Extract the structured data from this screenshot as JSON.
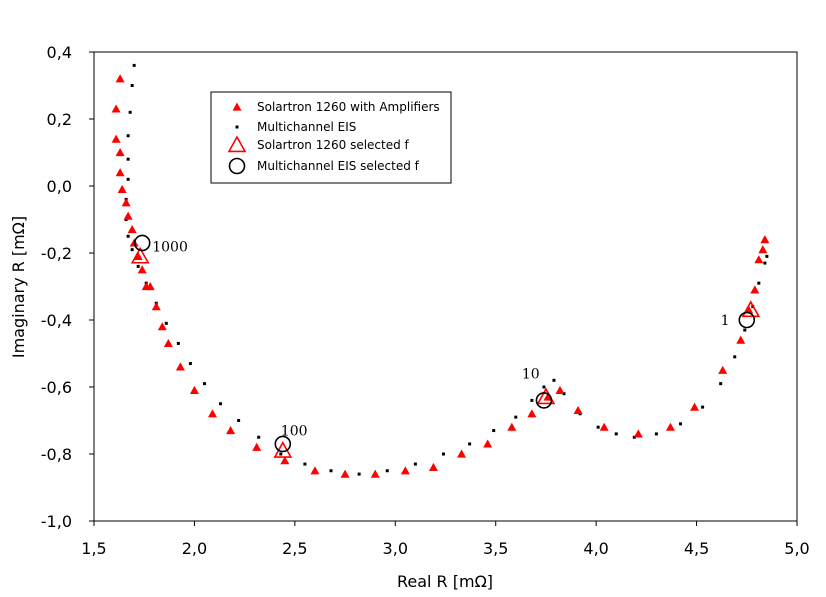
{
  "chart_data": {
    "type": "scatter",
    "title": "",
    "xlabel": "Real R [mΩ]",
    "ylabel": "Imaginary R [mΩ]",
    "xlim": [
      1.5,
      5.0
    ],
    "ylim": [
      -1.0,
      0.4
    ],
    "x_ticks": [
      "1,5",
      "2,0",
      "2,5",
      "3,0",
      "3,5",
      "4,0",
      "4,5",
      "5,0"
    ],
    "y_ticks": [
      "0,4",
      "0,2",
      "0,0",
      "-0,2",
      "-0,4",
      "-0,6",
      "-0,8",
      "-1,0"
    ],
    "grid": false,
    "legend_position": "upper-left inside plot",
    "colors": {
      "solartron": "#ff0000",
      "multichannel": "#000000"
    },
    "series": [
      {
        "name": "Solartron 1260 with Amplifiers",
        "marker": "filled-triangle",
        "color": "#ff0000",
        "x": [
          1.63,
          1.61,
          1.61,
          1.63,
          1.63,
          1.64,
          1.66,
          1.67,
          1.69,
          1.7,
          1.72,
          1.74,
          1.76,
          1.78,
          1.81,
          1.84,
          1.87,
          1.93,
          2.0,
          2.09,
          2.18,
          2.31,
          2.45,
          2.6,
          2.75,
          2.9,
          3.05,
          3.19,
          3.33,
          3.46,
          3.58,
          3.68,
          3.76,
          3.82,
          3.91,
          4.04,
          4.21,
          4.37,
          4.49,
          4.63,
          4.72,
          4.76,
          4.79,
          4.81,
          4.83,
          4.84
        ],
        "y": [
          0.32,
          0.23,
          0.14,
          0.1,
          0.04,
          -0.01,
          -0.05,
          -0.09,
          -0.13,
          -0.17,
          -0.21,
          -0.25,
          -0.3,
          -0.3,
          -0.36,
          -0.42,
          -0.47,
          -0.54,
          -0.61,
          -0.68,
          -0.73,
          -0.78,
          -0.82,
          -0.85,
          -0.86,
          -0.86,
          -0.85,
          -0.84,
          -0.8,
          -0.77,
          -0.72,
          -0.68,
          -0.63,
          -0.61,
          -0.67,
          -0.72,
          -0.74,
          -0.72,
          -0.66,
          -0.55,
          -0.46,
          -0.37,
          -0.31,
          -0.22,
          -0.19,
          -0.16
        ]
      },
      {
        "name": "Multichannel EIS",
        "marker": "small-dot",
        "color": "#000000",
        "x": [
          1.7,
          1.69,
          1.68,
          1.67,
          1.67,
          1.67,
          1.66,
          1.66,
          1.67,
          1.69,
          1.72,
          1.76,
          1.81,
          1.86,
          1.92,
          1.98,
          2.05,
          2.13,
          2.22,
          2.32,
          2.43,
          2.55,
          2.68,
          2.82,
          2.96,
          3.1,
          3.24,
          3.37,
          3.49,
          3.6,
          3.68,
          3.74,
          3.79,
          3.84,
          3.92,
          4.01,
          4.1,
          4.19,
          4.3,
          4.42,
          4.53,
          4.62,
          4.69,
          4.74,
          4.78,
          4.81,
          4.84,
          4.85
        ],
        "y": [
          0.36,
          0.3,
          0.22,
          0.15,
          0.08,
          0.02,
          -0.04,
          -0.1,
          -0.15,
          -0.19,
          -0.24,
          -0.29,
          -0.35,
          -0.41,
          -0.47,
          -0.53,
          -0.59,
          -0.65,
          -0.7,
          -0.75,
          -0.8,
          -0.83,
          -0.85,
          -0.86,
          -0.85,
          -0.83,
          -0.8,
          -0.77,
          -0.73,
          -0.69,
          -0.64,
          -0.6,
          -0.58,
          -0.62,
          -0.68,
          -0.72,
          -0.74,
          -0.75,
          -0.74,
          -0.71,
          -0.66,
          -0.59,
          -0.51,
          -0.43,
          -0.36,
          -0.29,
          -0.23,
          -0.21
        ]
      },
      {
        "name": "Solartron 1260 selected f",
        "marker": "open-triangle",
        "color": "#ff0000",
        "x": [
          1.73,
          2.44,
          3.75,
          4.77
        ],
        "y": [
          -0.21,
          -0.79,
          -0.63,
          -0.37
        ]
      },
      {
        "name": "Multichannel EIS selected f",
        "marker": "open-circle",
        "color": "#000000",
        "x": [
          1.74,
          2.44,
          3.74,
          4.75
        ],
        "y": [
          -0.17,
          -0.77,
          -0.64,
          -0.4
        ]
      }
    ],
    "annotations": [
      {
        "text": "1000",
        "x": 1.79,
        "y": -0.18
      },
      {
        "text": "100",
        "x": 2.43,
        "y": -0.73
      },
      {
        "text": "10",
        "x": 3.63,
        "y": -0.56
      },
      {
        "text": "1",
        "x": 4.62,
        "y": -0.4
      }
    ]
  }
}
